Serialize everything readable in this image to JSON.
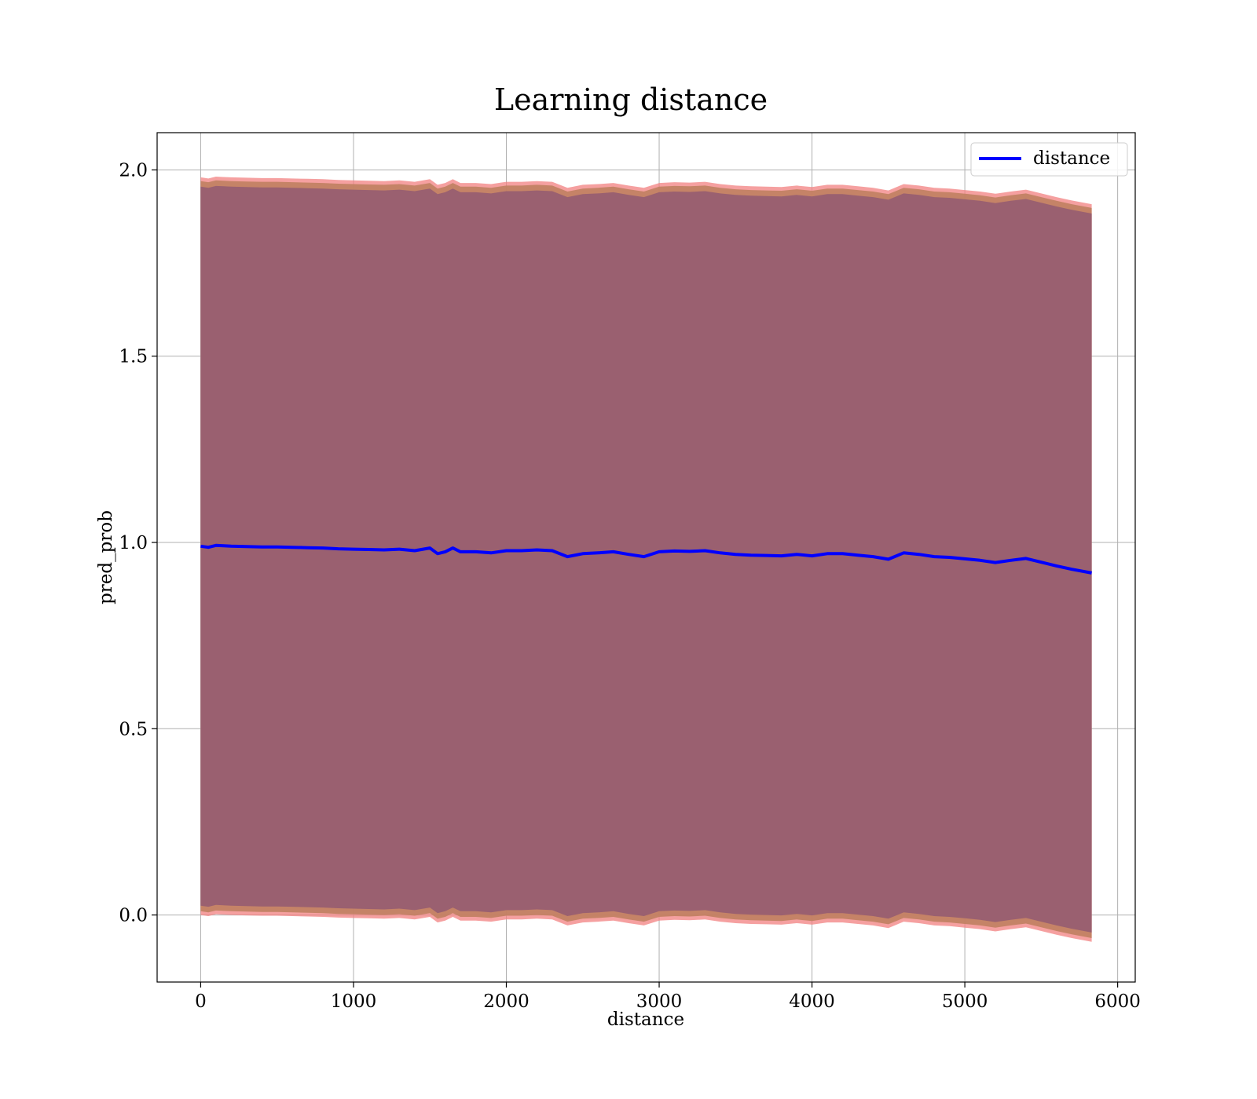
{
  "chart_data": {
    "type": "line",
    "title": "Learning distance",
    "xlabel": "distance",
    "ylabel": "pred_prob",
    "xlim": [
      -285,
      6115
    ],
    "ylim": [
      -0.18,
      2.1
    ],
    "xticks": [
      0,
      1000,
      2000,
      3000,
      4000,
      5000,
      6000
    ],
    "yticks": [
      0.0,
      0.5,
      1.0,
      1.5,
      2.0
    ],
    "xtick_labels": [
      "0",
      "1000",
      "2000",
      "3000",
      "4000",
      "5000",
      "6000"
    ],
    "ytick_labels": [
      "0.0",
      "0.5",
      "1.0",
      "1.5",
      "2.0"
    ],
    "grid": true,
    "legend": {
      "position": "top-right",
      "entries": [
        "distance"
      ]
    },
    "colors": {
      "line": "#0000ff",
      "band_outer": "#f28080",
      "band_mid": "#c08060",
      "band_inner": "#9a6070"
    },
    "series": [
      {
        "name": "distance",
        "x": [
          0,
          50,
          100,
          150,
          200,
          300,
          400,
          500,
          600,
          700,
          800,
          900,
          1000,
          1100,
          1200,
          1300,
          1400,
          1500,
          1550,
          1600,
          1650,
          1700,
          1800,
          1900,
          2000,
          2100,
          2200,
          2300,
          2400,
          2500,
          2600,
          2700,
          2800,
          2900,
          3000,
          3100,
          3200,
          3300,
          3400,
          3500,
          3600,
          3700,
          3800,
          3900,
          4000,
          4100,
          4200,
          4300,
          4400,
          4500,
          4600,
          4700,
          4800,
          4900,
          5000,
          5100,
          5200,
          5300,
          5400,
          5500,
          5600,
          5700,
          5830
        ],
        "y": [
          0.99,
          0.987,
          0.992,
          0.991,
          0.99,
          0.989,
          0.988,
          0.988,
          0.987,
          0.986,
          0.985,
          0.983,
          0.982,
          0.981,
          0.98,
          0.982,
          0.978,
          0.985,
          0.97,
          0.975,
          0.985,
          0.975,
          0.975,
          0.972,
          0.978,
          0.978,
          0.98,
          0.978,
          0.962,
          0.97,
          0.972,
          0.975,
          0.968,
          0.962,
          0.975,
          0.977,
          0.976,
          0.978,
          0.972,
          0.968,
          0.966,
          0.965,
          0.964,
          0.968,
          0.964,
          0.97,
          0.97,
          0.966,
          0.962,
          0.955,
          0.972,
          0.968,
          0.962,
          0.96,
          0.956,
          0.952,
          0.946,
          0.952,
          0.957,
          0.947,
          0.937,
          0.928,
          0.918
        ],
        "upper_outer_offset": 0.99,
        "upper_mid_offset": 0.98,
        "upper_inner_offset": 0.965
      }
    ]
  }
}
